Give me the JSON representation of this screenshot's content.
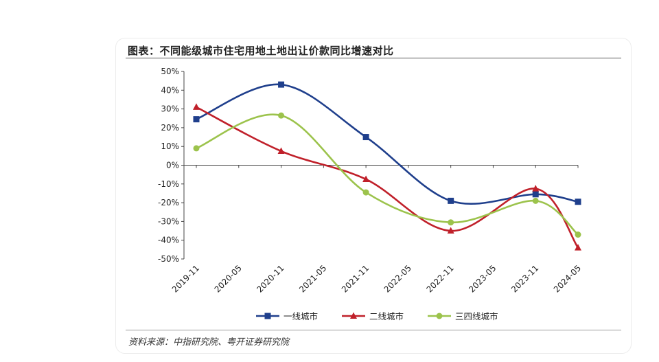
{
  "title": "图表：不同能级城市住宅用地土地出让价款同比增速对比",
  "source": "资料来源：中指研究院、粤开证券研究院",
  "chart_data": {
    "type": "line",
    "smooth": true,
    "x": [
      "2019-11",
      "2020-05",
      "2020-11",
      "2021-05",
      "2021-11",
      "2022-05",
      "2022-11",
      "2023-05",
      "2023-11",
      "2024-05"
    ],
    "ylim": [
      -50,
      50
    ],
    "yticks": [
      "50%",
      "40%",
      "30%",
      "20%",
      "10%",
      "0%",
      "-10%",
      "-20%",
      "-30%",
      "-40%",
      "-50%"
    ],
    "legend_position": "bottom",
    "grid": false,
    "series": [
      {
        "name": "一线城市",
        "color": "#1f3f8c",
        "marker": "square",
        "points": [
          [
            "2019-11",
            24.5
          ],
          [
            "2020-11",
            43
          ],
          [
            "2021-11",
            15
          ],
          [
            "2022-11",
            -19
          ],
          [
            "2023-11",
            -15.5
          ],
          [
            "2024-05",
            -19.5
          ]
        ]
      },
      {
        "name": "二线城市",
        "color": "#c0202a",
        "marker": "triangle",
        "points": [
          [
            "2019-11",
            31
          ],
          [
            "2020-11",
            7.5
          ],
          [
            "2021-11",
            -7.5
          ],
          [
            "2022-11",
            -35
          ],
          [
            "2023-11",
            -12.5
          ],
          [
            "2024-05",
            -44
          ]
        ]
      },
      {
        "name": "三四线城市",
        "color": "#9cc34c",
        "marker": "circle",
        "points": [
          [
            "2019-11",
            9
          ],
          [
            "2020-11",
            26.5
          ],
          [
            "2021-11",
            -14.5
          ],
          [
            "2022-11",
            -30.5
          ],
          [
            "2023-11",
            -19
          ],
          [
            "2024-05",
            -37
          ]
        ]
      }
    ]
  }
}
